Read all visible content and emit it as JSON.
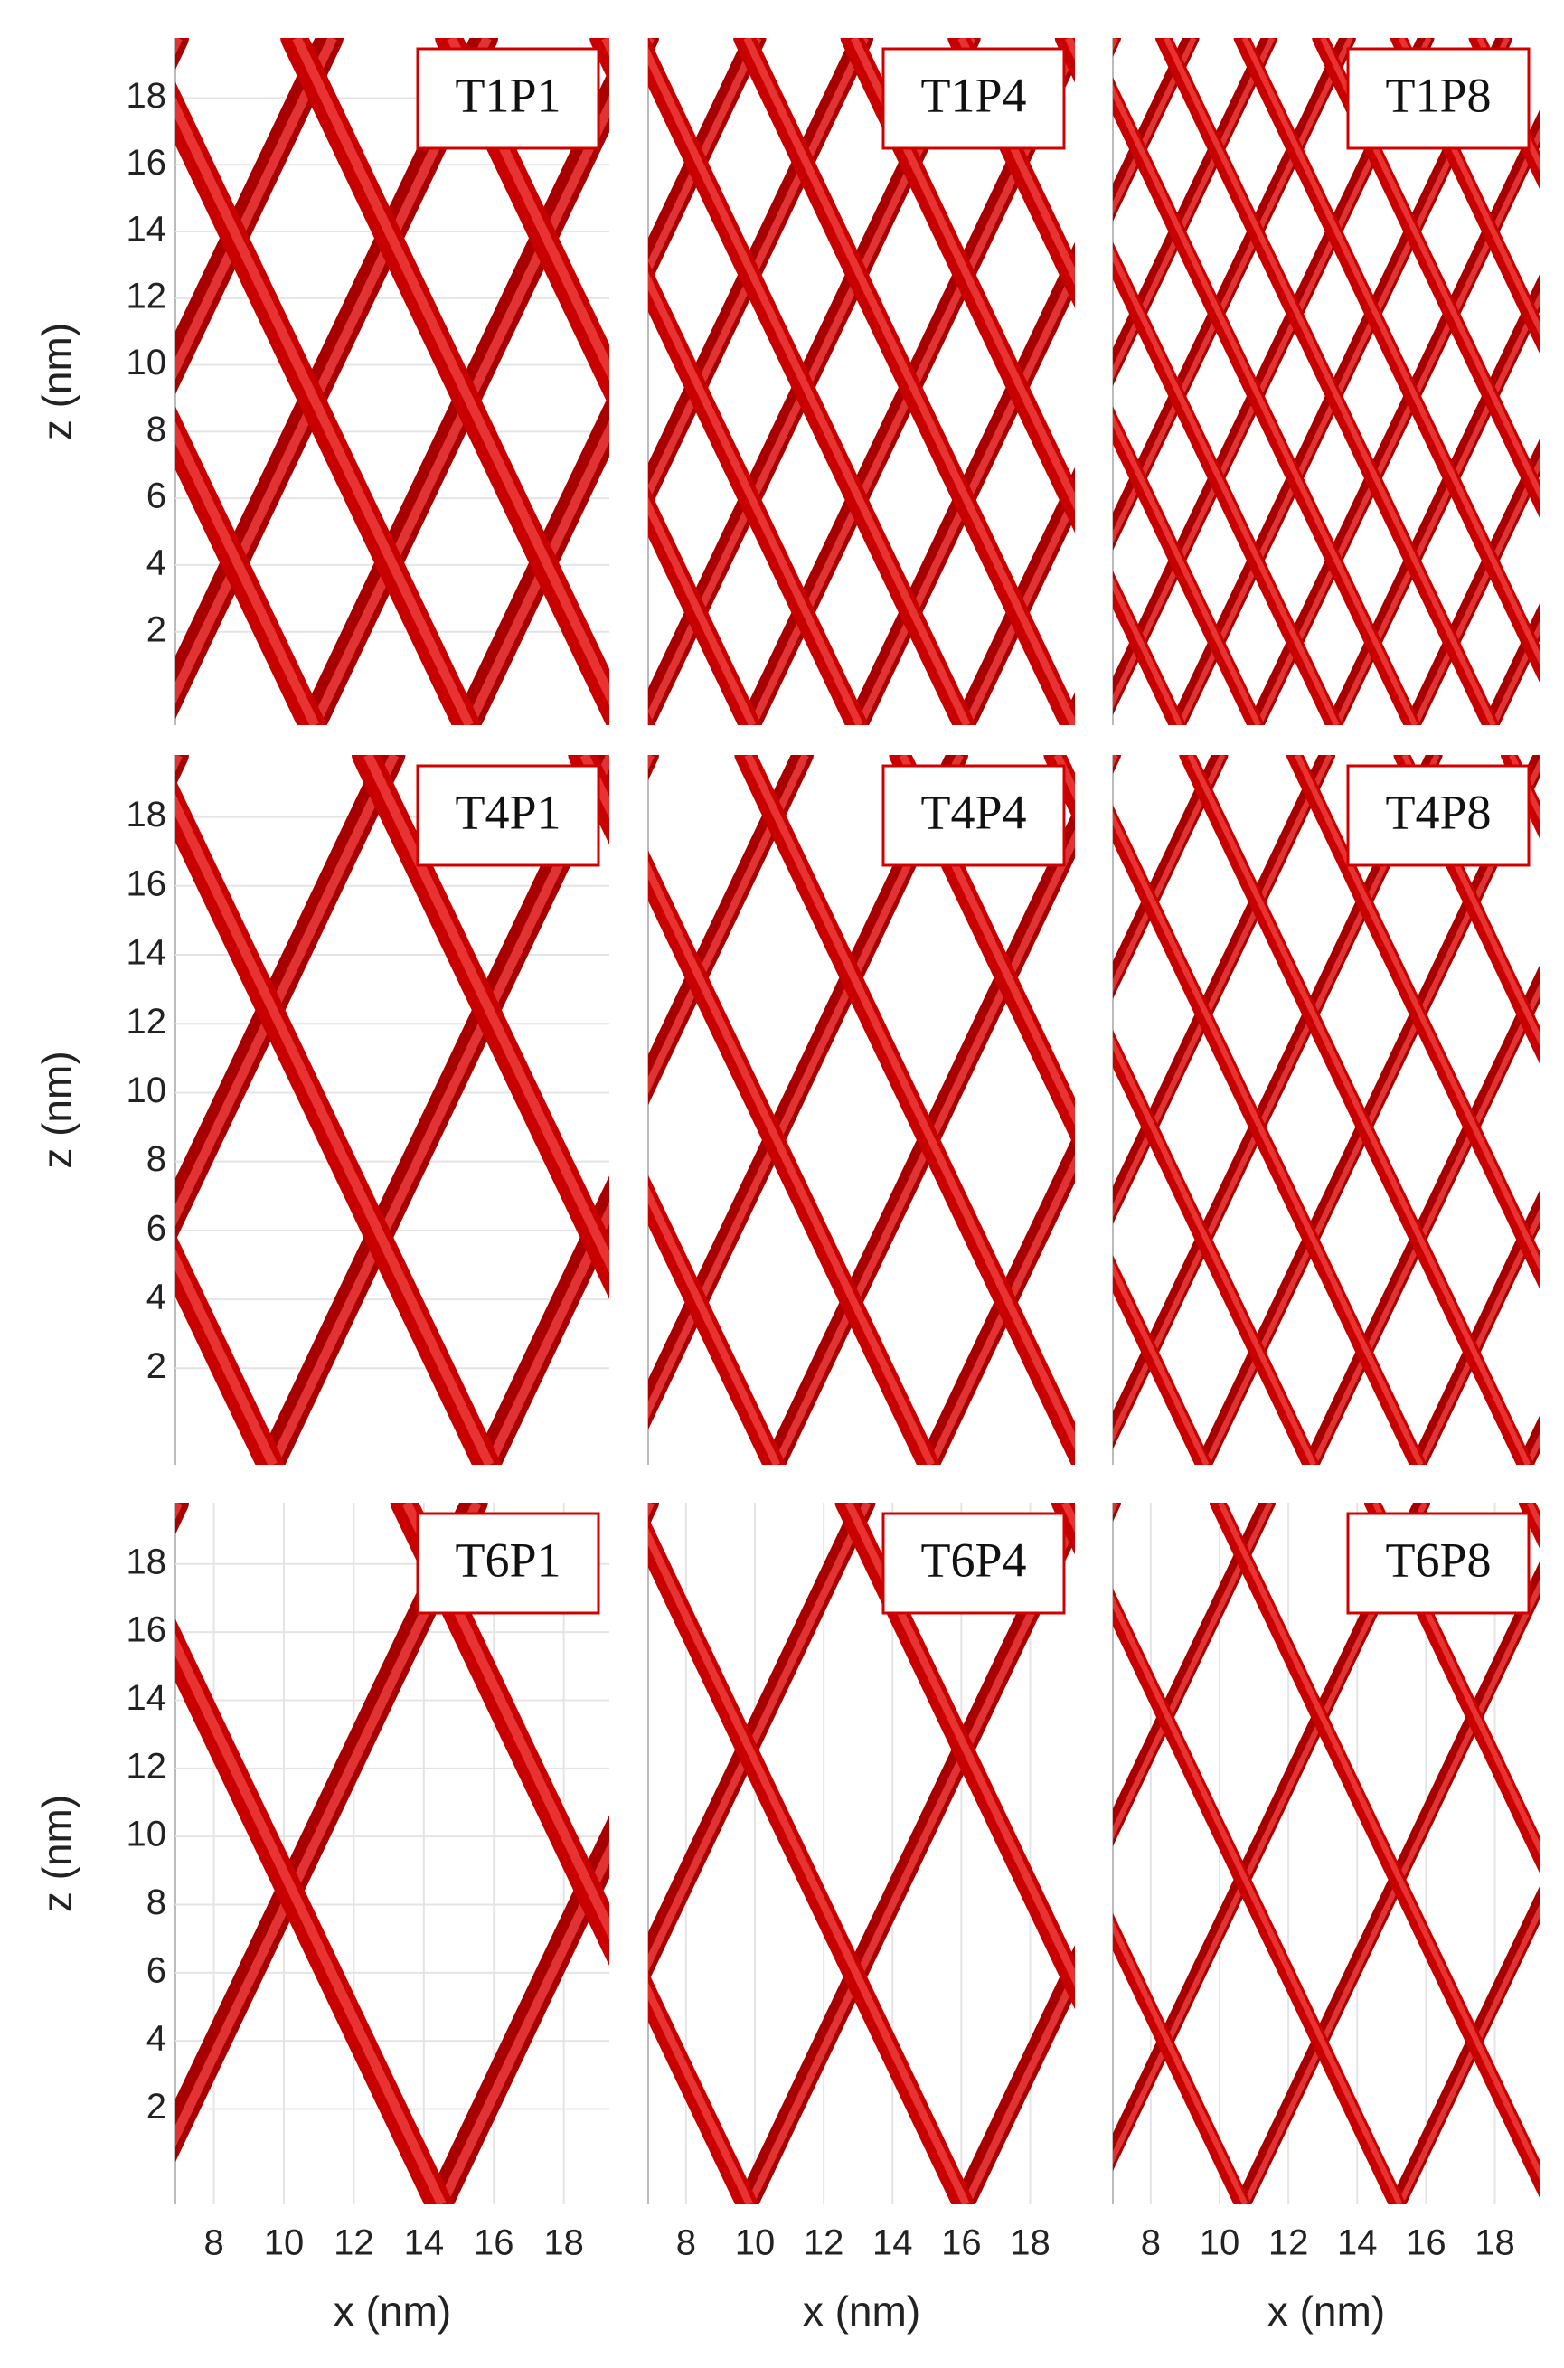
{
  "chart_data": [
    {
      "type": "lattice",
      "title": "T1P1",
      "ylabel": "z (nm)",
      "ylim": [
        -0.8,
        19.8
      ],
      "yticks": [
        2,
        4,
        6,
        8,
        10,
        12,
        14,
        16,
        18
      ]
    },
    {
      "type": "lattice",
      "title": "T1P4"
    },
    {
      "type": "lattice",
      "title": "T1P8"
    },
    {
      "type": "lattice",
      "title": "T4P1",
      "ylabel": "z (nm)",
      "ylim": [
        -0.8,
        19.8
      ],
      "yticks": [
        2,
        4,
        6,
        8,
        10,
        12,
        14,
        16,
        18
      ]
    },
    {
      "type": "lattice",
      "title": "T4P4"
    },
    {
      "type": "lattice",
      "title": "T4P8"
    },
    {
      "type": "lattice",
      "title": "T6P1",
      "ylabel": "z (nm)",
      "xlabel": "x (nm)",
      "ylim": [
        -0.8,
        19.8
      ],
      "yticks": [
        2,
        4,
        6,
        8,
        10,
        12,
        14,
        16,
        18
      ],
      "xlim": [
        6.9,
        19.3
      ],
      "xticks": [
        8,
        10,
        12,
        14,
        16,
        18
      ]
    },
    {
      "type": "lattice",
      "title": "T6P4",
      "xlabel": "x (nm)",
      "xlim": [
        6.9,
        19.3
      ],
      "xticks": [
        8,
        10,
        12,
        14,
        16,
        18
      ]
    },
    {
      "type": "lattice",
      "title": "T6P8",
      "xlabel": "x (nm)",
      "xlim": [
        6.9,
        19.3
      ],
      "xticks": [
        8,
        10,
        12,
        14,
        16,
        18
      ]
    }
  ]
}
